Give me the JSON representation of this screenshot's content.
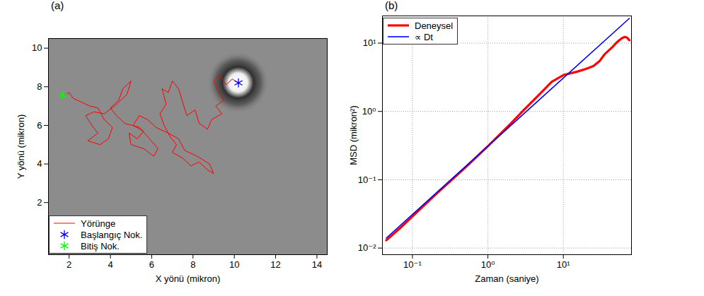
{
  "chart_data": [
    {
      "type": "line",
      "title": "(a)",
      "xlabel": "X yönü (mikron)",
      "ylabel": "Y yönü (mikron)",
      "xlim": [
        1.0,
        14.5
      ],
      "ylim": [
        -0.7,
        10.5
      ],
      "xticks": [
        2,
        4,
        6,
        8,
        10,
        12,
        14
      ],
      "yticks": [
        2,
        4,
        6,
        8,
        10
      ],
      "grid": false,
      "legend": "lower left",
      "series": [
        {
          "name": "Yörünge",
          "type": "line",
          "color": "#ff0000",
          "line_style": "solid",
          "x": [
            10.2,
            9.9,
            9.6,
            9.3,
            9.0,
            9.2,
            9.5,
            9.1,
            9.4,
            8.9,
            8.7,
            8.3,
            8.1,
            7.7,
            7.5,
            7.3,
            7.0,
            6.8,
            6.5,
            6.7,
            6.4,
            6.6,
            6.9,
            7.2,
            7.0,
            7.5,
            7.9,
            8.3,
            8.7,
            9.0,
            8.8,
            8.2,
            7.6,
            7.3,
            6.8,
            6.2,
            5.8,
            5.4,
            5.1,
            5.6,
            5.3,
            4.9,
            5.0,
            5.6,
            6.1,
            6.3,
            5.9,
            5.4,
            4.7,
            4.3,
            4.0,
            4.4,
            4.6,
            5.0,
            4.8,
            4.2,
            3.7,
            3.2,
            2.8,
            3.1,
            3.4,
            2.9,
            3.5,
            3.9,
            4.1,
            3.7,
            3.4,
            3.0,
            2.6,
            2.2,
            2.0,
            1.7
          ],
          "values": [
            8.2,
            8.4,
            8.1,
            8.6,
            8.3,
            7.8,
            7.3,
            7.0,
            6.6,
            6.3,
            5.8,
            6.1,
            6.8,
            6.5,
            7.2,
            7.9,
            8.3,
            7.7,
            7.9,
            7.1,
            6.6,
            6.0,
            5.4,
            5.0,
            4.6,
            4.3,
            3.9,
            4.1,
            3.7,
            3.5,
            4.0,
            4.4,
            4.7,
            5.3,
            5.6,
            5.9,
            6.3,
            6.5,
            6.0,
            5.7,
            5.3,
            5.6,
            5.0,
            4.8,
            4.4,
            4.8,
            5.3,
            5.9,
            6.1,
            6.5,
            6.9,
            7.3,
            7.9,
            8.3,
            7.6,
            7.0,
            6.6,
            6.7,
            6.5,
            6.0,
            5.6,
            5.2,
            5.0,
            5.3,
            5.9,
            6.3,
            6.9,
            7.0,
            7.2,
            7.4,
            7.7,
            7.55
          ]
        },
        {
          "name": "Başlangıç Nok.",
          "type": "scatter",
          "color": "#0000ff",
          "marker": "asterisk",
          "x": [
            10.2
          ],
          "values": [
            8.2
          ]
        },
        {
          "name": "Bitiş Nok.",
          "type": "scatter",
          "color": "#00ff00",
          "marker": "asterisk",
          "x": [
            1.7
          ],
          "values": [
            7.55
          ]
        }
      ]
    },
    {
      "type": "line",
      "title": "(b)",
      "xlabel": "Zaman (saniye)",
      "ylabel": "MSD (mikron²)",
      "log": true,
      "grid": true,
      "legend": "upper left",
      "xlim": [
        0.04,
        80
      ],
      "ylim": [
        0.008,
        25
      ],
      "xticks": [
        {
          "value": 0.1,
          "label": "10⁻¹"
        },
        {
          "value": 1,
          "label": "10⁰"
        },
        {
          "value": 10,
          "label": "10¹"
        }
      ],
      "yticks": [
        {
          "value": 0.01,
          "label": "10⁻²"
        },
        {
          "value": 0.1,
          "label": "10⁻¹"
        },
        {
          "value": 1,
          "label": "10⁰"
        },
        {
          "value": 10,
          "label": "10¹"
        }
      ],
      "series": [
        {
          "name": "Deneysel",
          "type": "line",
          "color": "#ff0000",
          "line_style": "solid",
          "x": [
            0.045,
            0.07,
            0.1,
            0.2,
            0.5,
            1,
            2,
            3,
            5,
            7,
            10,
            15,
            20,
            25,
            30,
            35,
            40,
            45,
            50,
            55,
            60,
            65,
            70,
            75
          ],
          "values": [
            0.013,
            0.02,
            0.029,
            0.06,
            0.15,
            0.31,
            0.66,
            1.05,
            1.85,
            2.7,
            3.4,
            3.8,
            4.2,
            4.6,
            5.4,
            6.8,
            7.8,
            8.8,
            10,
            11,
            11.8,
            12.3,
            12,
            11
          ]
        },
        {
          "name": "∝ Dt",
          "type": "line",
          "color": "#0000ff",
          "line_style": "solid",
          "x": [
            0.045,
            75
          ],
          "values": [
            0.014,
            23
          ]
        }
      ]
    }
  ]
}
